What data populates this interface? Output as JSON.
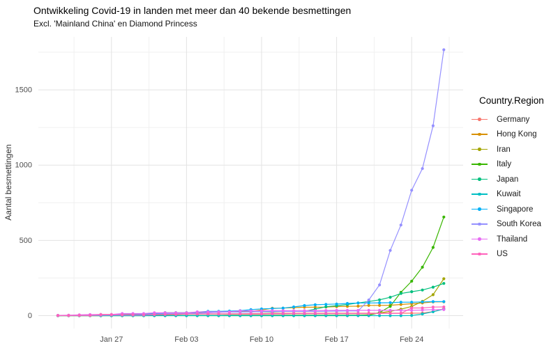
{
  "page": {
    "background": "#FFFFFF"
  },
  "chart_data": {
    "type": "line",
    "title": "Ontwikkeling Covid-19 in landen met meer dan 40 bekende besmettingen",
    "subtitle": "Excl. 'Mainland China' en Diamond Princess",
    "xlabel": "",
    "ylabel": "Aantal besmettingen",
    "legend_title": "Country.Region",
    "legend_position": "right",
    "grid": true,
    "x": [
      "Jan 22",
      "Jan 23",
      "Jan 24",
      "Jan 25",
      "Jan 26",
      "Jan 27",
      "Jan 28",
      "Jan 29",
      "Jan 30",
      "Jan 31",
      "Feb 01",
      "Feb 02",
      "Feb 03",
      "Feb 04",
      "Feb 05",
      "Feb 06",
      "Feb 07",
      "Feb 08",
      "Feb 09",
      "Feb 10",
      "Feb 11",
      "Feb 12",
      "Feb 13",
      "Feb 14",
      "Feb 15",
      "Feb 16",
      "Feb 17",
      "Feb 18",
      "Feb 19",
      "Feb 20",
      "Feb 21",
      "Feb 22",
      "Feb 23",
      "Feb 24",
      "Feb 25",
      "Feb 26",
      "Feb 27"
    ],
    "x_tick_labels": [
      "Jan 27",
      "Feb 03",
      "Feb 10",
      "Feb 17",
      "Feb 24"
    ],
    "x_tick_index": [
      5,
      12,
      19,
      26,
      33
    ],
    "y_ticks": [
      0,
      500,
      1000,
      1500
    ],
    "y_minor_ticks": [
      250,
      750,
      1250,
      1750
    ],
    "ylim": [
      0,
      1850
    ],
    "colors": {
      "grid_major": "#E3E3E3",
      "grid_minor": "#F0F0F0",
      "tick_label": "#4D4D4D",
      "axis_title": "#333333",
      "title": "#000000"
    },
    "series": [
      {
        "name": "Germany",
        "color": "#F8766D",
        "values": [
          0,
          0,
          0,
          0,
          0,
          1,
          4,
          4,
          4,
          5,
          8,
          10,
          12,
          12,
          12,
          12,
          13,
          13,
          14,
          14,
          16,
          16,
          16,
          16,
          16,
          16,
          16,
          16,
          16,
          16,
          16,
          16,
          16,
          16,
          17,
          27,
          46
        ]
      },
      {
        "name": "Hong Kong",
        "color": "#D89000",
        "values": [
          0,
          2,
          2,
          5,
          8,
          8,
          8,
          10,
          10,
          12,
          13,
          15,
          15,
          17,
          21,
          24,
          25,
          26,
          29,
          38,
          49,
          50,
          53,
          56,
          56,
          57,
          60,
          62,
          63,
          68,
          68,
          69,
          74,
          79,
          84,
          91,
          92
        ]
      },
      {
        "name": "Iran",
        "color": "#A3A500",
        "values": [
          0,
          0,
          0,
          0,
          0,
          0,
          0,
          0,
          0,
          0,
          0,
          0,
          0,
          0,
          0,
          0,
          0,
          0,
          0,
          0,
          0,
          0,
          0,
          0,
          0,
          0,
          0,
          0,
          2,
          5,
          18,
          28,
          43,
          61,
          95,
          139,
          245
        ]
      },
      {
        "name": "Italy",
        "color": "#39B600",
        "values": [
          0,
          0,
          0,
          0,
          0,
          0,
          0,
          0,
          0,
          2,
          2,
          2,
          2,
          2,
          2,
          2,
          3,
          3,
          3,
          3,
          3,
          3,
          3,
          3,
          3,
          3,
          3,
          3,
          3,
          3,
          20,
          62,
          155,
          229,
          322,
          453,
          655
        ]
      },
      {
        "name": "Japan",
        "color": "#00BF7D",
        "values": [
          2,
          2,
          2,
          2,
          4,
          4,
          7,
          7,
          11,
          15,
          20,
          20,
          20,
          22,
          22,
          22,
          25,
          25,
          26,
          26,
          26,
          28,
          28,
          29,
          43,
          59,
          66,
          74,
          84,
          94,
          105,
          122,
          147,
          159,
          170,
          189,
          214
        ]
      },
      {
        "name": "Kuwait",
        "color": "#00BFC4",
        "values": [
          0,
          0,
          0,
          0,
          0,
          0,
          0,
          0,
          0,
          0,
          0,
          0,
          0,
          0,
          0,
          0,
          0,
          0,
          0,
          0,
          0,
          0,
          0,
          0,
          0,
          0,
          0,
          0,
          0,
          0,
          0,
          0,
          0,
          1,
          11,
          26,
          43
        ]
      },
      {
        "name": "Singapore",
        "color": "#00B0F6",
        "values": [
          0,
          1,
          3,
          3,
          4,
          5,
          7,
          7,
          10,
          13,
          16,
          18,
          18,
          24,
          28,
          28,
          30,
          33,
          40,
          45,
          47,
          50,
          58,
          67,
          72,
          75,
          77,
          81,
          84,
          84,
          85,
          86,
          89,
          89,
          91,
          93,
          93
        ]
      },
      {
        "name": "South Korea",
        "color": "#9590FF",
        "values": [
          1,
          1,
          2,
          2,
          3,
          4,
          4,
          4,
          4,
          11,
          12,
          15,
          15,
          16,
          19,
          23,
          24,
          24,
          25,
          27,
          28,
          28,
          28,
          28,
          28,
          29,
          30,
          31,
          31,
          104,
          204,
          433,
          602,
          833,
          977,
          1261,
          1766
        ]
      },
      {
        "name": "Thailand",
        "color": "#E76BF3",
        "values": [
          2,
          3,
          5,
          7,
          8,
          8,
          14,
          14,
          14,
          19,
          19,
          19,
          19,
          25,
          25,
          25,
          25,
          32,
          32,
          32,
          33,
          33,
          33,
          33,
          33,
          34,
          35,
          35,
          35,
          35,
          35,
          35,
          35,
          35,
          37,
          40,
          40
        ]
      },
      {
        "name": "US",
        "color": "#FF62BC",
        "values": [
          1,
          1,
          2,
          2,
          5,
          5,
          5,
          5,
          5,
          7,
          8,
          8,
          11,
          11,
          11,
          11,
          11,
          11,
          11,
          11,
          12,
          12,
          13,
          13,
          13,
          13,
          13,
          13,
          13,
          13,
          15,
          15,
          15,
          51,
          51,
          57,
          58
        ]
      }
    ]
  }
}
